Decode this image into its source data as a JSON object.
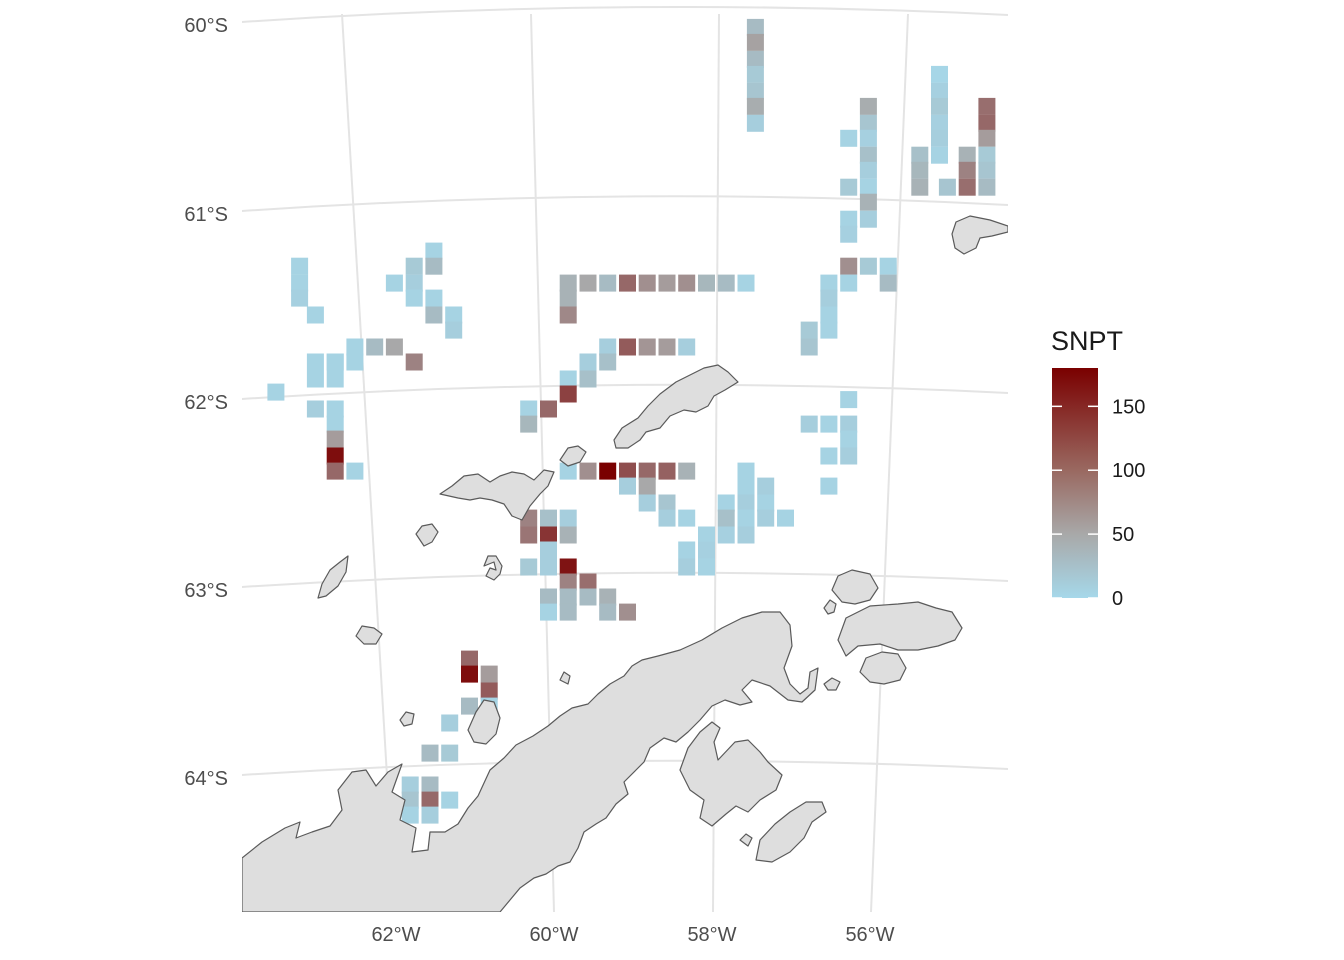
{
  "map": {
    "type": "gridded-raster",
    "fill_variable": "SNPT",
    "lat_labels": [
      "60°S",
      "61°S",
      "62°S",
      "63°S",
      "64°S"
    ],
    "lon_labels": [
      "62°W",
      "60°W",
      "58°W",
      "56°W"
    ],
    "land_color": "#dedede",
    "land_outline_color": "#5a5a5a",
    "graticule_color": "#e4e4e4",
    "color_scale": {
      "low": "#a6d8ea",
      "mid": "#a8a8a8",
      "high": "#7a0000",
      "domain": [
        0,
        180
      ]
    }
  },
  "legend": {
    "title": "SNPT",
    "breaks": [
      {
        "label": "150",
        "value": 150
      },
      {
        "label": "100",
        "value": 100
      },
      {
        "label": "50",
        "value": 50
      },
      {
        "label": "0",
        "value": 0
      }
    ]
  },
  "chart_data": {
    "type": "heatmap",
    "title": "",
    "xlabel": "",
    "ylabel": "",
    "legend_title": "SNPT",
    "value_range": [
      0,
      180
    ],
    "grid": true,
    "legend_position": "right",
    "note_cells": "Each cell is [lon_deg, lat_deg, SNPT] with W longitude and S latitude as negative degrees.",
    "cells": [
      [
        -57.45,
        -60.05,
        30
      ],
      [
        -57.45,
        -60.13,
        55
      ],
      [
        -57.45,
        -60.22,
        30
      ],
      [
        -57.45,
        -60.3,
        15
      ],
      [
        -57.45,
        -60.39,
        20
      ],
      [
        -57.45,
        -60.47,
        45
      ],
      [
        -57.45,
        -60.56,
        10
      ],
      [
        -55.12,
        -60.3,
        2
      ],
      [
        -55.12,
        -60.39,
        8
      ],
      [
        -55.12,
        -60.47,
        15
      ],
      [
        -55.12,
        -60.56,
        8
      ],
      [
        -55.12,
        -60.64,
        10
      ],
      [
        -55.12,
        -60.73,
        5
      ],
      [
        -55.37,
        -60.73,
        25
      ],
      [
        -55.37,
        -60.81,
        35
      ],
      [
        -55.37,
        -60.9,
        40
      ],
      [
        -56.02,
        -60.47,
        45
      ],
      [
        -56.02,
        -60.56,
        20
      ],
      [
        -56.02,
        -60.64,
        8
      ],
      [
        -56.27,
        -60.64,
        5
      ],
      [
        -56.02,
        -60.73,
        25
      ],
      [
        -56.02,
        -60.81,
        10
      ],
      [
        -56.27,
        -60.9,
        15
      ],
      [
        -56.02,
        -60.9,
        5
      ],
      [
        -56.02,
        -60.98,
        40
      ],
      [
        -56.27,
        -61.07,
        5
      ],
      [
        -56.02,
        -61.07,
        10
      ],
      [
        -56.27,
        -61.15,
        8
      ],
      [
        -54.52,
        -60.47,
        95
      ],
      [
        -54.52,
        -60.56,
        100
      ],
      [
        -54.52,
        -60.64,
        60
      ],
      [
        -54.77,
        -60.73,
        40
      ],
      [
        -54.52,
        -60.73,
        15
      ],
      [
        -54.77,
        -60.81,
        80
      ],
      [
        -54.52,
        -60.81,
        20
      ],
      [
        -55.02,
        -60.9,
        20
      ],
      [
        -54.77,
        -60.9,
        95
      ],
      [
        -54.52,
        -60.9,
        30
      ],
      [
        -56.27,
        -61.32,
        70
      ],
      [
        -56.02,
        -61.32,
        15
      ],
      [
        -55.77,
        -61.32,
        5
      ],
      [
        -56.27,
        -61.41,
        5
      ],
      [
        -56.52,
        -61.41,
        5
      ],
      [
        -55.77,
        -61.41,
        30
      ],
      [
        -56.52,
        -61.49,
        10
      ],
      [
        -56.52,
        -61.58,
        5
      ],
      [
        -56.77,
        -61.66,
        15
      ],
      [
        -56.52,
        -61.66,
        5
      ],
      [
        -56.77,
        -61.75,
        20
      ],
      [
        -56.27,
        -62.03,
        5
      ],
      [
        -56.52,
        -62.16,
        5
      ],
      [
        -56.77,
        -62.16,
        10
      ],
      [
        -56.27,
        -62.16,
        10
      ],
      [
        -56.27,
        -62.24,
        5
      ],
      [
        -56.52,
        -62.33,
        5
      ],
      [
        -56.27,
        -62.33,
        10
      ],
      [
        -56.52,
        -62.49,
        5
      ],
      [
        -57.57,
        -62.41,
        5
      ],
      [
        -57.32,
        -62.49,
        10
      ],
      [
        -57.57,
        -62.49,
        5
      ],
      [
        -57.82,
        -62.58,
        5
      ],
      [
        -57.57,
        -62.58,
        10
      ],
      [
        -57.32,
        -62.58,
        5
      ],
      [
        -57.82,
        -62.66,
        25
      ],
      [
        -57.57,
        -62.66,
        5
      ],
      [
        -57.32,
        -62.66,
        10
      ],
      [
        -57.07,
        -62.66,
        5
      ],
      [
        -57.82,
        -62.75,
        8
      ],
      [
        -58.07,
        -62.75,
        5
      ],
      [
        -57.57,
        -62.75,
        10
      ],
      [
        -58.32,
        -62.83,
        5
      ],
      [
        -58.07,
        -62.83,
        8
      ],
      [
        -58.32,
        -62.92,
        10
      ],
      [
        -58.07,
        -62.92,
        5
      ],
      [
        -59.82,
        -61.41,
        40
      ],
      [
        -59.57,
        -61.41,
        50
      ],
      [
        -59.32,
        -61.41,
        30
      ],
      [
        -59.07,
        -61.41,
        100
      ],
      [
        -58.82,
        -61.41,
        70
      ],
      [
        -58.57,
        -61.41,
        60
      ],
      [
        -58.32,
        -61.41,
        70
      ],
      [
        -58.07,
        -61.41,
        35
      ],
      [
        -57.82,
        -61.41,
        30
      ],
      [
        -57.57,
        -61.41,
        5
      ],
      [
        -59.82,
        -61.49,
        40
      ],
      [
        -59.82,
        -61.58,
        75
      ],
      [
        -59.32,
        -61.75,
        10
      ],
      [
        -59.07,
        -61.75,
        110
      ],
      [
        -58.82,
        -61.75,
        65
      ],
      [
        -58.57,
        -61.75,
        60
      ],
      [
        -58.32,
        -61.75,
        10
      ],
      [
        -59.57,
        -61.83,
        10
      ],
      [
        -59.32,
        -61.83,
        25
      ],
      [
        -59.82,
        -61.92,
        5
      ],
      [
        -59.57,
        -61.92,
        25
      ],
      [
        -59.82,
        -62.0,
        130
      ],
      [
        -60.07,
        -62.08,
        100
      ],
      [
        -60.32,
        -62.08,
        5
      ],
      [
        -60.32,
        -62.16,
        35
      ],
      [
        -59.82,
        -62.41,
        5
      ],
      [
        -59.57,
        -62.41,
        70
      ],
      [
        -59.32,
        -62.41,
        180
      ],
      [
        -59.07,
        -62.41,
        120
      ],
      [
        -58.82,
        -62.41,
        100
      ],
      [
        -58.57,
        -62.41,
        105
      ],
      [
        -58.32,
        -62.41,
        40
      ],
      [
        -59.07,
        -62.49,
        10
      ],
      [
        -58.82,
        -62.49,
        50
      ],
      [
        -58.82,
        -62.58,
        10
      ],
      [
        -58.57,
        -62.58,
        20
      ],
      [
        -58.57,
        -62.66,
        10
      ],
      [
        -58.32,
        -62.66,
        5
      ],
      [
        -60.32,
        -62.66,
        80
      ],
      [
        -60.07,
        -62.66,
        25
      ],
      [
        -59.82,
        -62.66,
        10
      ],
      [
        -60.32,
        -62.75,
        90
      ],
      [
        -60.07,
        -62.75,
        140
      ],
      [
        -59.82,
        -62.75,
        40
      ],
      [
        -60.07,
        -62.83,
        10
      ],
      [
        -59.82,
        -62.92,
        165
      ],
      [
        -60.32,
        -62.92,
        15
      ],
      [
        -60.07,
        -62.92,
        10
      ],
      [
        -59.82,
        -63.0,
        80
      ],
      [
        -59.57,
        -63.0,
        95
      ],
      [
        -60.07,
        -63.08,
        30
      ],
      [
        -59.82,
        -63.08,
        30
      ],
      [
        -59.57,
        -63.08,
        30
      ],
      [
        -59.32,
        -63.08,
        40
      ],
      [
        -60.07,
        -63.16,
        5
      ],
      [
        -59.82,
        -63.16,
        30
      ],
      [
        -59.32,
        -63.16,
        30
      ],
      [
        -59.07,
        -63.16,
        70
      ],
      [
        -61.07,
        -63.41,
        100
      ],
      [
        -61.07,
        -63.49,
        170
      ],
      [
        -60.82,
        -63.49,
        60
      ],
      [
        -60.82,
        -63.58,
        110
      ],
      [
        -60.82,
        -63.66,
        5
      ],
      [
        -61.07,
        -63.66,
        30
      ],
      [
        -61.32,
        -63.75,
        10
      ],
      [
        -61.57,
        -63.91,
        30
      ],
      [
        -61.32,
        -63.91,
        15
      ],
      [
        -61.82,
        -64.08,
        10
      ],
      [
        -61.57,
        -64.08,
        30
      ],
      [
        -61.82,
        -64.16,
        20
      ],
      [
        -61.57,
        -64.16,
        100
      ],
      [
        -61.32,
        -64.16,
        5
      ],
      [
        -61.82,
        -64.24,
        5
      ],
      [
        -61.57,
        -64.24,
        10
      ],
      [
        -62.52,
        -64.58,
        10
      ],
      [
        -62.27,
        -64.58,
        80
      ],
      [
        -62.02,
        -64.58,
        5
      ],
      [
        -62.77,
        -64.66,
        10
      ],
      [
        -62.52,
        -64.66,
        30
      ],
      [
        -62.27,
        -64.66,
        30
      ],
      [
        -62.02,
        -64.66,
        5
      ],
      [
        -63.02,
        -64.74,
        20
      ],
      [
        -62.77,
        -64.74,
        40
      ],
      [
        -62.52,
        -64.74,
        10
      ],
      [
        -62.27,
        -64.74,
        10
      ],
      [
        -63.27,
        -64.83,
        20
      ],
      [
        -63.02,
        -64.83,
        30
      ],
      [
        -63.22,
        -61.32,
        5
      ],
      [
        -63.22,
        -61.41,
        5
      ],
      [
        -63.22,
        -61.49,
        8
      ],
      [
        -63.02,
        -61.58,
        5
      ],
      [
        -61.52,
        -61.24,
        5
      ],
      [
        -61.77,
        -61.32,
        15
      ],
      [
        -61.52,
        -61.32,
        30
      ],
      [
        -61.77,
        -61.41,
        10
      ],
      [
        -62.02,
        -61.41,
        5
      ],
      [
        -61.77,
        -61.49,
        5
      ],
      [
        -61.52,
        -61.49,
        5
      ],
      [
        -61.52,
        -61.58,
        30
      ],
      [
        -61.27,
        -61.58,
        5
      ],
      [
        -61.27,
        -61.66,
        10
      ],
      [
        -62.77,
        -61.83,
        5
      ],
      [
        -62.52,
        -61.75,
        5
      ],
      [
        -62.27,
        -61.75,
        30
      ],
      [
        -62.02,
        -61.75,
        50
      ],
      [
        -63.02,
        -61.83,
        5
      ],
      [
        -62.77,
        -61.83,
        5
      ],
      [
        -62.52,
        -61.83,
        5
      ],
      [
        -61.77,
        -61.83,
        80
      ],
      [
        -63.02,
        -61.92,
        5
      ],
      [
        -62.77,
        -61.92,
        5
      ],
      [
        -63.52,
        -61.99,
        5
      ],
      [
        -63.02,
        -62.08,
        10
      ],
      [
        -62.77,
        -62.08,
        5
      ],
      [
        -62.77,
        -62.16,
        5
      ],
      [
        -62.77,
        -62.24,
        60
      ],
      [
        -62.77,
        -62.33,
        170
      ],
      [
        -62.77,
        -62.41,
        100
      ],
      [
        -62.52,
        -62.41,
        5
      ]
    ]
  }
}
